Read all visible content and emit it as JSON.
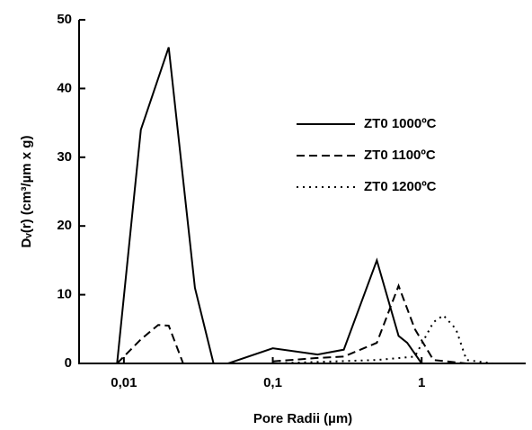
{
  "chart_data": {
    "type": "line",
    "x_label": "Pore Radii (µm)",
    "y_label": "Dᵥ(r) (cm³/µm x g)",
    "xscale": "log",
    "xlim": [
      0.005,
      5
    ],
    "ylim": [
      0,
      50
    ],
    "xticks": [
      {
        "value": 0.01,
        "label": "0,01"
      },
      {
        "value": 0.1,
        "label": "0,1"
      },
      1
    ],
    "yticks": [
      0,
      10,
      20,
      30,
      40,
      50
    ],
    "legend": "upper right",
    "series": [
      {
        "name": "ZT0 1000ºC",
        "color": "#000000",
        "dash": "solid",
        "x": [
          0.009,
          0.013,
          0.02,
          0.03,
          0.04,
          0.05,
          0.1,
          0.2,
          0.3,
          0.5,
          0.7,
          0.8,
          1
        ],
        "values": [
          0,
          34,
          46,
          11,
          0,
          0,
          2.2,
          1.3,
          2,
          15,
          4,
          3,
          0
        ]
      },
      {
        "name": "ZT0 1100ºC",
        "color": "#000000",
        "dash": "dashed",
        "x": [
          0.009,
          0.013,
          0.017,
          0.02,
          0.025,
          null,
          0.1,
          0.2,
          0.3,
          0.5,
          0.7,
          0.9,
          1.2,
          2
        ],
        "values": [
          0,
          3.5,
          5.6,
          5.5,
          0,
          null,
          0.3,
          0.8,
          1,
          3,
          11.3,
          5,
          0.5,
          0
        ]
      },
      {
        "name": "ZT0 1200ºC",
        "color": "#000000",
        "dash": "dotted",
        "x": [
          0.1,
          0.5,
          0.9,
          1.2,
          1.4,
          1.7,
          2,
          3
        ],
        "values": [
          0,
          0.5,
          1,
          6,
          7,
          5,
          0.5,
          0
        ]
      }
    ]
  }
}
